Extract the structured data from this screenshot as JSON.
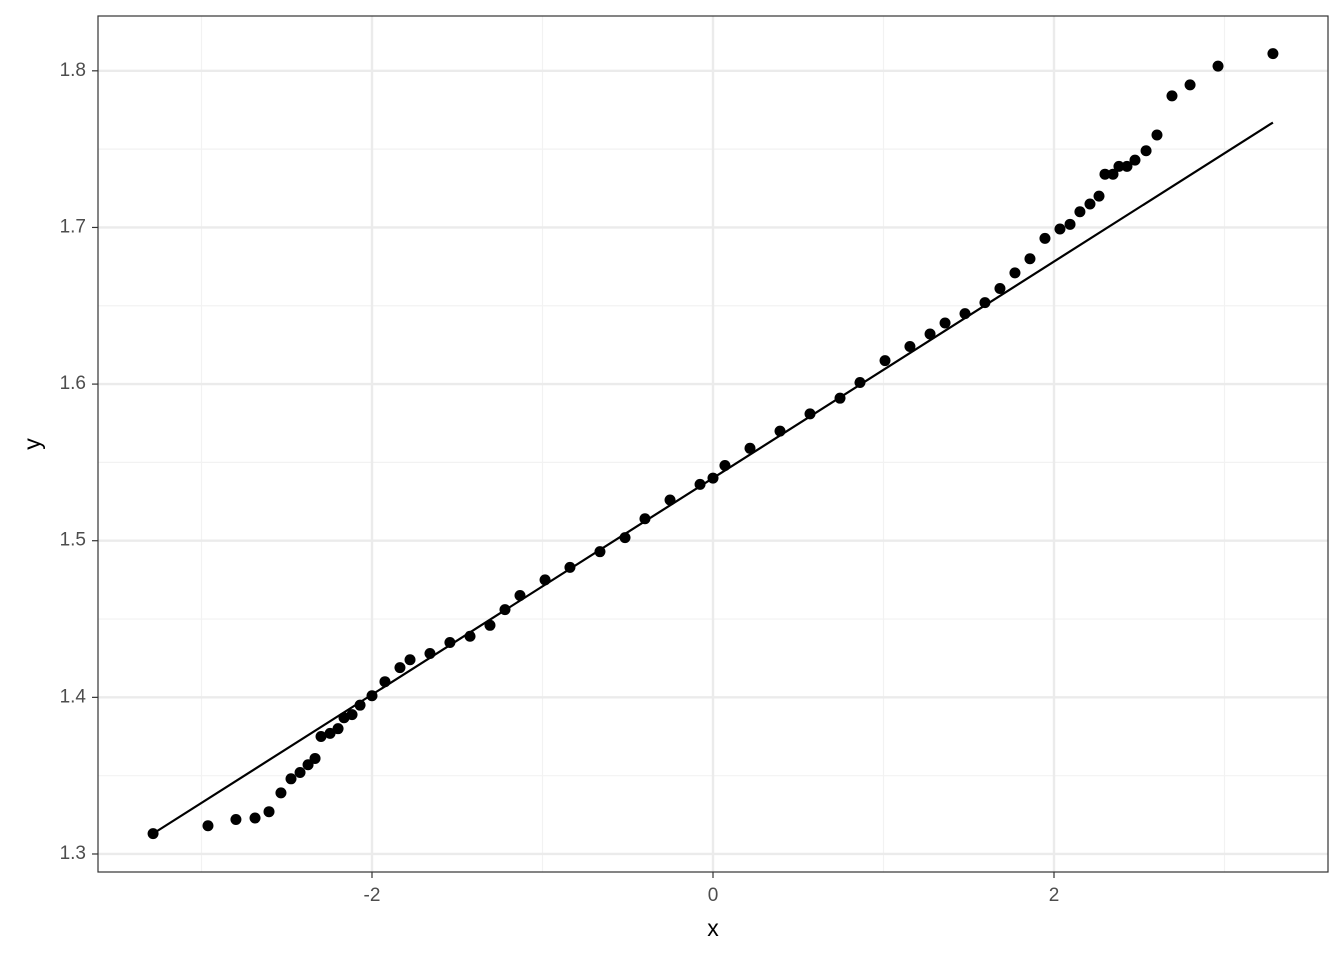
{
  "chart_data": {
    "type": "scatter",
    "xlabel": "x",
    "ylabel": "y",
    "xlim": [
      -3.607,
      3.607
    ],
    "ylim": [
      1.2885,
      1.835
    ],
    "xticks": [
      -2,
      0,
      2
    ],
    "yticks": [
      1.3,
      1.4,
      1.5,
      1.6,
      1.7,
      1.8
    ],
    "xminor": [
      -3,
      -1,
      1,
      3
    ],
    "yminor": [
      1.35,
      1.45,
      1.55,
      1.65,
      1.75
    ],
    "grid": true,
    "series": [
      {
        "color": "#000000",
        "x": [
          -3.284,
          -2.962,
          -2.798,
          -2.686,
          -2.604,
          -2.534,
          -2.475,
          -2.422,
          -2.375,
          -2.334,
          -2.299,
          -2.246,
          -2.199,
          -2.164,
          -2.117,
          -2.07,
          -2.0,
          -1.924,
          -1.836,
          -1.777,
          -1.66,
          -1.543,
          -1.425,
          -1.308,
          -1.22,
          -1.132,
          -0.985,
          -0.839,
          -0.663,
          -0.516,
          -0.399,
          -0.252,
          -0.076,
          0,
          0.07,
          0.217,
          0.393,
          0.569,
          0.745,
          0.862,
          1.009,
          1.155,
          1.273,
          1.361,
          1.478,
          1.595,
          1.683,
          1.771,
          1.859,
          1.947,
          2.035,
          2.094,
          2.152,
          2.211,
          2.264,
          2.299,
          2.346,
          2.381,
          2.428,
          2.475,
          2.54,
          2.604,
          2.692,
          2.798,
          2.962,
          3.284
        ],
        "values": [
          1.313,
          1.318,
          1.322,
          1.323,
          1.327,
          1.339,
          1.348,
          1.352,
          1.357,
          1.361,
          1.375,
          1.377,
          1.38,
          1.387,
          1.389,
          1.395,
          1.401,
          1.41,
          1.419,
          1.424,
          1.428,
          1.435,
          1.439,
          1.446,
          1.456,
          1.465,
          1.475,
          1.483,
          1.493,
          1.502,
          1.514,
          1.526,
          1.536,
          1.54,
          1.548,
          1.559,
          1.57,
          1.581,
          1.591,
          1.601,
          1.615,
          1.624,
          1.632,
          1.639,
          1.645,
          1.652,
          1.661,
          1.671,
          1.68,
          1.693,
          1.699,
          1.702,
          1.71,
          1.715,
          1.72,
          1.734,
          1.734,
          1.739,
          1.739,
          1.743,
          1.749,
          1.759,
          1.784,
          1.791,
          1.803,
          1.811
        ]
      },
      {
        "color": "#000000",
        "line": true,
        "x": [
          -3.284,
          3.284
        ],
        "values": [
          1.313,
          1.767
        ]
      }
    ]
  }
}
